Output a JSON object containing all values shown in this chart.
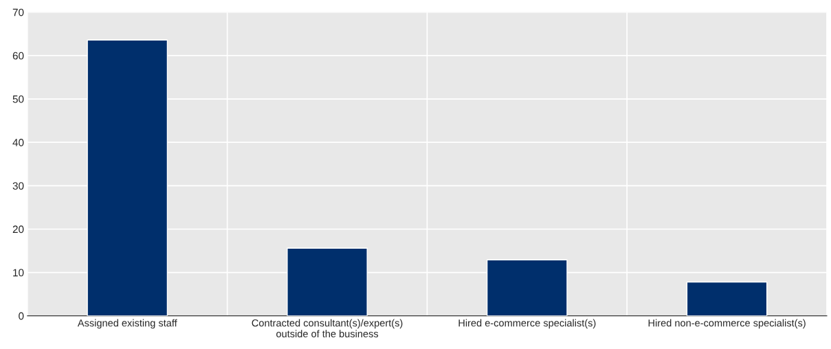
{
  "chart_data": {
    "type": "bar",
    "categories": [
      "Assigned existing staff",
      "Contracted consultant(s)/expert(s)\noutside of the business",
      "Hired e-commerce specialist(s)",
      "Hired non-e-commerce specialist(s)"
    ],
    "values": [
      63.6,
      15.6,
      12.9,
      7.8
    ],
    "color": "#002f6c",
    "ylim": [
      0,
      70
    ],
    "yticks": [
      0,
      10,
      20,
      30,
      40,
      50,
      60,
      70
    ],
    "grid": true
  }
}
